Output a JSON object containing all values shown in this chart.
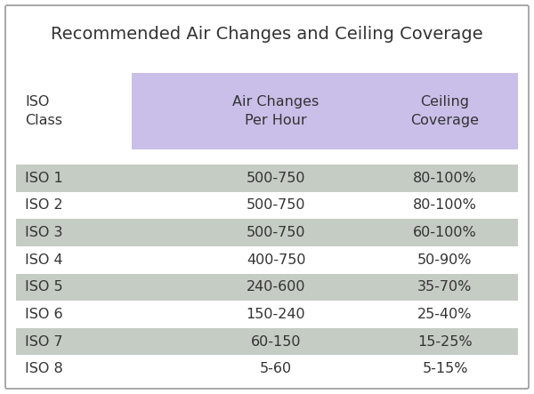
{
  "title": "Recommended Air Changes and Ceiling Coverage",
  "col_headers": [
    "ISO\nClass",
    "Air Changes\nPer Hour",
    "Ceiling\nCoverage"
  ],
  "rows": [
    [
      "ISO 1",
      "500-750",
      "80-100%"
    ],
    [
      "ISO 2",
      "500-750",
      "80-100%"
    ],
    [
      "ISO 3",
      "500-750",
      "60-100%"
    ],
    [
      "ISO 4",
      "400-750",
      "50-90%"
    ],
    [
      "ISO 5",
      "240-600",
      "35-70%"
    ],
    [
      "ISO 6",
      "150-240",
      "25-40%"
    ],
    [
      "ISO 7",
      "60-150",
      "15-25%"
    ],
    [
      "ISO 8",
      "5-60",
      "5-15%"
    ]
  ],
  "row_shaded": [
    true,
    false,
    true,
    false,
    true,
    false,
    true,
    false
  ],
  "header_bg_color": "#c9bfe8",
  "shaded_row_color": "#c5ccc4",
  "white_row_color": "#ffffff",
  "outer_bg_color": "#ffffff",
  "border_color": "#999999",
  "text_color": "#333333",
  "title_fontsize": 14,
  "header_fontsize": 11.5,
  "cell_fontsize": 11.5
}
